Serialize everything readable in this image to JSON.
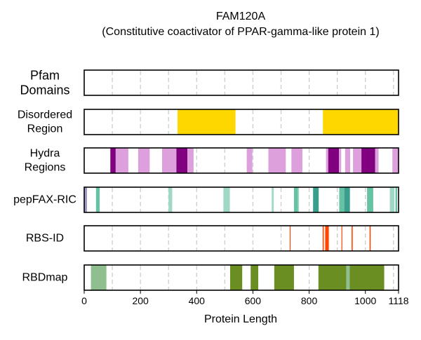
{
  "chart_data": {
    "type": "bar",
    "title_lines": [
      "FAM120A",
      "(Constitutive coactivator of PPAR-gamma-like protein 1)"
    ],
    "xlabel": "Protein Length",
    "xlim": [
      0,
      1118
    ],
    "xticks": [
      0,
      200,
      400,
      600,
      800,
      1000,
      1118
    ],
    "grid_positions": [
      100,
      200,
      300,
      400,
      500,
      600,
      700,
      800,
      900,
      1000,
      1100
    ],
    "grid": true,
    "colors": {
      "disordered": "#FFD700",
      "hydra_light": "#DDA0DD",
      "hydra_dark": "#800080",
      "pepfax_light": "#9FD8C4",
      "pepfax_mid": "#66C2A5",
      "pepfax_dark": "#3A9E8C",
      "pepfax_purple": "#9E9AC8",
      "rbs_id": "#FF4500",
      "rbdmap_light": "#8FBF8F",
      "rbdmap_dark": "#6B8E23",
      "grid": "#C8C8C8",
      "frame": "#000000"
    },
    "tracks": [
      {
        "lines": [
          "Pfam",
          "Domains"
        ],
        "large": true,
        "segments": []
      },
      {
        "lines": [
          "Disordered",
          "Region"
        ],
        "segments": [
          {
            "start": 332,
            "end": 538,
            "color": "disordered"
          },
          {
            "start": 849,
            "end": 1118,
            "color": "disordered"
          }
        ]
      },
      {
        "lines": [
          "Hydra",
          "Regions"
        ],
        "segments": [
          {
            "start": 93,
            "end": 112,
            "color": "hydra_dark"
          },
          {
            "start": 112,
            "end": 157,
            "color": "hydra_light"
          },
          {
            "start": 192,
            "end": 233,
            "color": "hydra_light"
          },
          {
            "start": 277,
            "end": 328,
            "color": "hydra_light"
          },
          {
            "start": 328,
            "end": 367,
            "color": "hydra_dark"
          },
          {
            "start": 367,
            "end": 389,
            "color": "hydra_light"
          },
          {
            "start": 578,
            "end": 598,
            "color": "hydra_light"
          },
          {
            "start": 655,
            "end": 717,
            "color": "hydra_light"
          },
          {
            "start": 737,
            "end": 776,
            "color": "hydra_light"
          },
          {
            "start": 860,
            "end": 868,
            "color": "hydra_light"
          },
          {
            "start": 868,
            "end": 906,
            "color": "hydra_dark"
          },
          {
            "start": 906,
            "end": 914,
            "color": "hydra_light"
          },
          {
            "start": 928,
            "end": 946,
            "color": "hydra_light"
          },
          {
            "start": 956,
            "end": 986,
            "color": "hydra_light"
          },
          {
            "start": 986,
            "end": 1035,
            "color": "hydra_dark"
          },
          {
            "start": 1035,
            "end": 1047,
            "color": "hydra_light"
          },
          {
            "start": 1096,
            "end": 1118,
            "color": "hydra_light"
          }
        ]
      },
      {
        "lines": [
          "pepFAX-RIC"
        ],
        "segments": [
          {
            "start": 0,
            "end": 10,
            "color": "pepfax_purple"
          },
          {
            "start": 42,
            "end": 55,
            "color": "pepfax_mid"
          },
          {
            "start": 300,
            "end": 313,
            "color": "pepfax_light"
          },
          {
            "start": 495,
            "end": 518,
            "color": "pepfax_light"
          },
          {
            "start": 667,
            "end": 674,
            "color": "pepfax_light"
          },
          {
            "start": 746,
            "end": 760,
            "color": "pepfax_mid"
          },
          {
            "start": 760,
            "end": 764,
            "color": "pepfax_light"
          },
          {
            "start": 814,
            "end": 834,
            "color": "pepfax_dark"
          },
          {
            "start": 907,
            "end": 925,
            "color": "pepfax_mid"
          },
          {
            "start": 925,
            "end": 945,
            "color": "pepfax_dark"
          },
          {
            "start": 1006,
            "end": 1028,
            "color": "pepfax_mid"
          },
          {
            "start": 1087,
            "end": 1103,
            "color": "pepfax_light"
          },
          {
            "start": 1107,
            "end": 1113,
            "color": "pepfax_mid"
          }
        ]
      },
      {
        "lines": [
          "RBS-ID"
        ],
        "segments": [
          {
            "start": 731,
            "end": 734,
            "color": "rbs_id"
          },
          {
            "start": 848,
            "end": 852,
            "color": "rbs_id"
          },
          {
            "start": 857,
            "end": 870,
            "color": "rbs_id"
          },
          {
            "start": 915,
            "end": 918,
            "color": "rbs_id"
          },
          {
            "start": 951,
            "end": 955,
            "color": "rbs_id"
          },
          {
            "start": 1015,
            "end": 1019,
            "color": "rbs_id"
          }
        ]
      },
      {
        "lines": [
          "RBDmap"
        ],
        "segments": [
          {
            "start": 24,
            "end": 79,
            "color": "rbdmap_light"
          },
          {
            "start": 519,
            "end": 562,
            "color": "rbdmap_dark"
          },
          {
            "start": 592,
            "end": 619,
            "color": "rbdmap_dark"
          },
          {
            "start": 676,
            "end": 746,
            "color": "rbdmap_dark"
          },
          {
            "start": 833,
            "end": 932,
            "color": "rbdmap_dark"
          },
          {
            "start": 932,
            "end": 944,
            "color": "rbdmap_light"
          },
          {
            "start": 944,
            "end": 1067,
            "color": "rbdmap_dark"
          }
        ]
      }
    ]
  }
}
